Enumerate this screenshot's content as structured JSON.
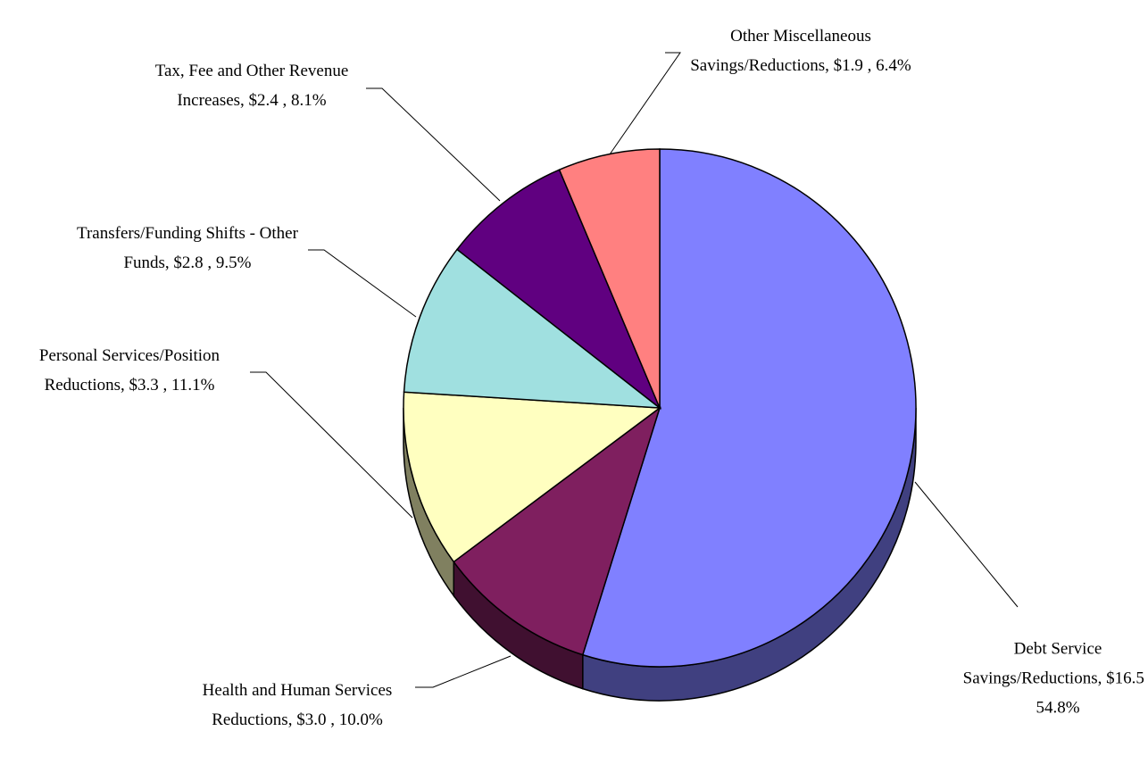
{
  "chart_data": {
    "type": "pie",
    "categories": [
      "Debt Service Savings/Reductions",
      "Health and Human Services Reductions",
      "Personal Services/Position Reductions",
      "Transfers/Funding Shifts - Other Funds",
      "Tax, Fee and Other Revenue Increases",
      "Other Miscellaneous Savings/Reductions"
    ],
    "values": [
      54.8,
      10.0,
      11.1,
      9.5,
      8.1,
      6.4
    ],
    "value_labels": [
      "Debt Service Savings/Reductions, $16.5 , 54.8%",
      "Health and Human Services Reductions, $3.0 , 10.0%",
      "Personal Services/Position Reductions, $3.3 , 11.1%",
      "Transfers/Funding Shifts - Other Funds, $2.8 , 9.5%",
      "Tax, Fee and Other Revenue Increases, $2.4 , 8.1%",
      "Other Miscellaneous Savings/Reductions, $1.9 , 6.4%"
    ],
    "colors": [
      "#8080ff",
      "#7f1f5f",
      "#ffffc0",
      "#a0e0e0",
      "#600080",
      "#ff8080"
    ]
  }
}
